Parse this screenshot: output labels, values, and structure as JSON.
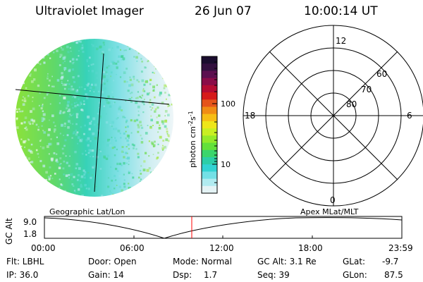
{
  "header": {
    "instrument": "Ultraviolet Imager",
    "date": "26 Jun 07",
    "time": "10:00:14 UT"
  },
  "colorbar": {
    "unit_prefix": "photon cm",
    "unit_exp1": "-2",
    "unit_mid": "s",
    "unit_exp2": "-1",
    "ticks": [
      "100",
      "10"
    ],
    "colors": [
      "#1a0d2e",
      "#33103f",
      "#5c0f4f",
      "#8a0c48",
      "#b50c33",
      "#d61a1a",
      "#e5541a",
      "#f08c14",
      "#f6bd14",
      "#eee619",
      "#c8ef23",
      "#94ea2a",
      "#63e13a",
      "#3bd56c",
      "#2ccea8",
      "#32d3d3",
      "#73e0e6",
      "#b0ebf0",
      "#e4f3f5"
    ]
  },
  "polar": {
    "labels": {
      "top": "12",
      "left": "18",
      "right": "6",
      "bottom": "0"
    },
    "rings": [
      "80",
      "70",
      "60"
    ]
  },
  "timeline": {
    "left_label": "Geographic Lat/Lon",
    "right_label": "Apex MLat/MLT",
    "axis_label": "GC Alt",
    "y_max": "9.0",
    "y_min": "1.8",
    "x_ticks": [
      "00:00",
      "06:00",
      "12:00",
      "18:00",
      "23:59"
    ]
  },
  "status": {
    "filter": "Flt: LBHL",
    "door": "Door: Open",
    "mode": "Mode: Normal",
    "gc_alt": "GC Alt: 3.1 Re",
    "glat_label": "GLat:",
    "glat_value": "-9.7",
    "ip": "IP: 36.0",
    "gain": "Gain: 14",
    "dsp_label": "Dsp:",
    "dsp_value": "1.7",
    "seq": "Seq: 39",
    "glon_label": "GLon:",
    "glon_value": "87.5"
  }
}
